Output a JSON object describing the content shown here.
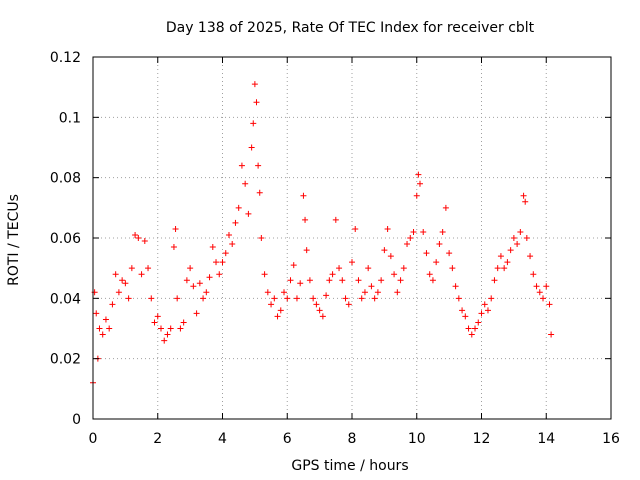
{
  "chart_data": {
    "type": "scatter",
    "title": "Day 138 of 2025, Rate Of TEC Index for receiver cblt",
    "xlabel": "GPS time / hours",
    "ylabel": "ROTI / TECUs",
    "xlim": [
      0,
      16
    ],
    "ylim": [
      0,
      0.12
    ],
    "x_ticks": [
      "0",
      "2",
      "4",
      "6",
      "8",
      "10",
      "12",
      "14",
      "16"
    ],
    "y_ticks": [
      "0",
      "0.02",
      "0.04",
      "0.06",
      "0.08",
      "0.1",
      "0.12"
    ],
    "x_tick_values": [
      0,
      2,
      4,
      6,
      8,
      10,
      12,
      14,
      16
    ],
    "y_tick_values": [
      0,
      0.02,
      0.04,
      0.06,
      0.08,
      0.1,
      0.12
    ],
    "grid": true,
    "marker": "+",
    "color": "#ff0000",
    "series": [
      {
        "name": "ROTI",
        "points": [
          [
            0.0,
            0.012
          ],
          [
            0.05,
            0.042
          ],
          [
            0.1,
            0.035
          ],
          [
            0.15,
            0.02
          ],
          [
            0.2,
            0.03
          ],
          [
            0.3,
            0.028
          ],
          [
            0.4,
            0.033
          ],
          [
            0.5,
            0.03
          ],
          [
            0.6,
            0.038
          ],
          [
            0.7,
            0.048
          ],
          [
            0.8,
            0.042
          ],
          [
            0.9,
            0.046
          ],
          [
            1.0,
            0.045
          ],
          [
            1.1,
            0.04
          ],
          [
            1.2,
            0.05
          ],
          [
            1.3,
            0.061
          ],
          [
            1.4,
            0.06
          ],
          [
            1.5,
            0.048
          ],
          [
            1.6,
            0.059
          ],
          [
            1.7,
            0.05
          ],
          [
            1.8,
            0.04
          ],
          [
            1.9,
            0.032
          ],
          [
            2.0,
            0.034
          ],
          [
            2.1,
            0.03
          ],
          [
            2.2,
            0.026
          ],
          [
            2.3,
            0.028
          ],
          [
            2.4,
            0.03
          ],
          [
            2.5,
            0.057
          ],
          [
            2.55,
            0.063
          ],
          [
            2.6,
            0.04
          ],
          [
            2.7,
            0.03
          ],
          [
            2.8,
            0.032
          ],
          [
            2.9,
            0.046
          ],
          [
            3.0,
            0.05
          ],
          [
            3.1,
            0.044
          ],
          [
            3.2,
            0.035
          ],
          [
            3.3,
            0.045
          ],
          [
            3.4,
            0.04
          ],
          [
            3.5,
            0.042
          ],
          [
            3.6,
            0.047
          ],
          [
            3.7,
            0.057
          ],
          [
            3.8,
            0.052
          ],
          [
            3.9,
            0.048
          ],
          [
            4.0,
            0.052
          ],
          [
            4.1,
            0.055
          ],
          [
            4.2,
            0.061
          ],
          [
            4.3,
            0.058
          ],
          [
            4.4,
            0.065
          ],
          [
            4.5,
            0.07
          ],
          [
            4.6,
            0.084
          ],
          [
            4.7,
            0.078
          ],
          [
            4.8,
            0.068
          ],
          [
            4.9,
            0.09
          ],
          [
            4.95,
            0.098
          ],
          [
            5.0,
            0.111
          ],
          [
            5.05,
            0.105
          ],
          [
            5.1,
            0.084
          ],
          [
            5.15,
            0.075
          ],
          [
            5.2,
            0.06
          ],
          [
            5.3,
            0.048
          ],
          [
            5.4,
            0.042
          ],
          [
            5.5,
            0.038
          ],
          [
            5.6,
            0.04
          ],
          [
            5.7,
            0.034
          ],
          [
            5.8,
            0.036
          ],
          [
            5.9,
            0.042
          ],
          [
            6.0,
            0.04
          ],
          [
            6.1,
            0.046
          ],
          [
            6.2,
            0.051
          ],
          [
            6.3,
            0.04
          ],
          [
            6.4,
            0.045
          ],
          [
            6.5,
            0.074
          ],
          [
            6.55,
            0.066
          ],
          [
            6.6,
            0.056
          ],
          [
            6.7,
            0.046
          ],
          [
            6.8,
            0.04
          ],
          [
            6.9,
            0.038
          ],
          [
            7.0,
            0.036
          ],
          [
            7.1,
            0.034
          ],
          [
            7.2,
            0.041
          ],
          [
            7.3,
            0.046
          ],
          [
            7.4,
            0.048
          ],
          [
            7.5,
            0.066
          ],
          [
            7.6,
            0.05
          ],
          [
            7.7,
            0.046
          ],
          [
            7.8,
            0.04
          ],
          [
            7.9,
            0.038
          ],
          [
            8.0,
            0.052
          ],
          [
            8.1,
            0.063
          ],
          [
            8.2,
            0.046
          ],
          [
            8.3,
            0.04
          ],
          [
            8.4,
            0.042
          ],
          [
            8.5,
            0.05
          ],
          [
            8.6,
            0.044
          ],
          [
            8.7,
            0.04
          ],
          [
            8.8,
            0.042
          ],
          [
            8.9,
            0.046
          ],
          [
            9.0,
            0.056
          ],
          [
            9.1,
            0.063
          ],
          [
            9.2,
            0.054
          ],
          [
            9.3,
            0.048
          ],
          [
            9.4,
            0.042
          ],
          [
            9.5,
            0.046
          ],
          [
            9.6,
            0.05
          ],
          [
            9.7,
            0.058
          ],
          [
            9.8,
            0.06
          ],
          [
            9.9,
            0.062
          ],
          [
            10.0,
            0.074
          ],
          [
            10.05,
            0.081
          ],
          [
            10.1,
            0.078
          ],
          [
            10.2,
            0.062
          ],
          [
            10.3,
            0.055
          ],
          [
            10.4,
            0.048
          ],
          [
            10.5,
            0.046
          ],
          [
            10.6,
            0.052
          ],
          [
            10.7,
            0.058
          ],
          [
            10.8,
            0.062
          ],
          [
            10.9,
            0.07
          ],
          [
            11.0,
            0.055
          ],
          [
            11.1,
            0.05
          ],
          [
            11.2,
            0.044
          ],
          [
            11.3,
            0.04
          ],
          [
            11.4,
            0.036
          ],
          [
            11.5,
            0.034
          ],
          [
            11.6,
            0.03
          ],
          [
            11.7,
            0.028
          ],
          [
            11.8,
            0.03
          ],
          [
            11.9,
            0.032
          ],
          [
            12.0,
            0.035
          ],
          [
            12.1,
            0.038
          ],
          [
            12.2,
            0.036
          ],
          [
            12.3,
            0.04
          ],
          [
            12.4,
            0.046
          ],
          [
            12.5,
            0.05
          ],
          [
            12.6,
            0.054
          ],
          [
            12.7,
            0.05
          ],
          [
            12.8,
            0.052
          ],
          [
            12.9,
            0.056
          ],
          [
            13.0,
            0.06
          ],
          [
            13.1,
            0.058
          ],
          [
            13.2,
            0.062
          ],
          [
            13.3,
            0.074
          ],
          [
            13.35,
            0.072
          ],
          [
            13.4,
            0.06
          ],
          [
            13.5,
            0.054
          ],
          [
            13.6,
            0.048
          ],
          [
            13.7,
            0.044
          ],
          [
            13.8,
            0.042
          ],
          [
            13.9,
            0.04
          ],
          [
            14.0,
            0.044
          ],
          [
            14.1,
            0.038
          ],
          [
            14.15,
            0.028
          ]
        ]
      }
    ]
  }
}
